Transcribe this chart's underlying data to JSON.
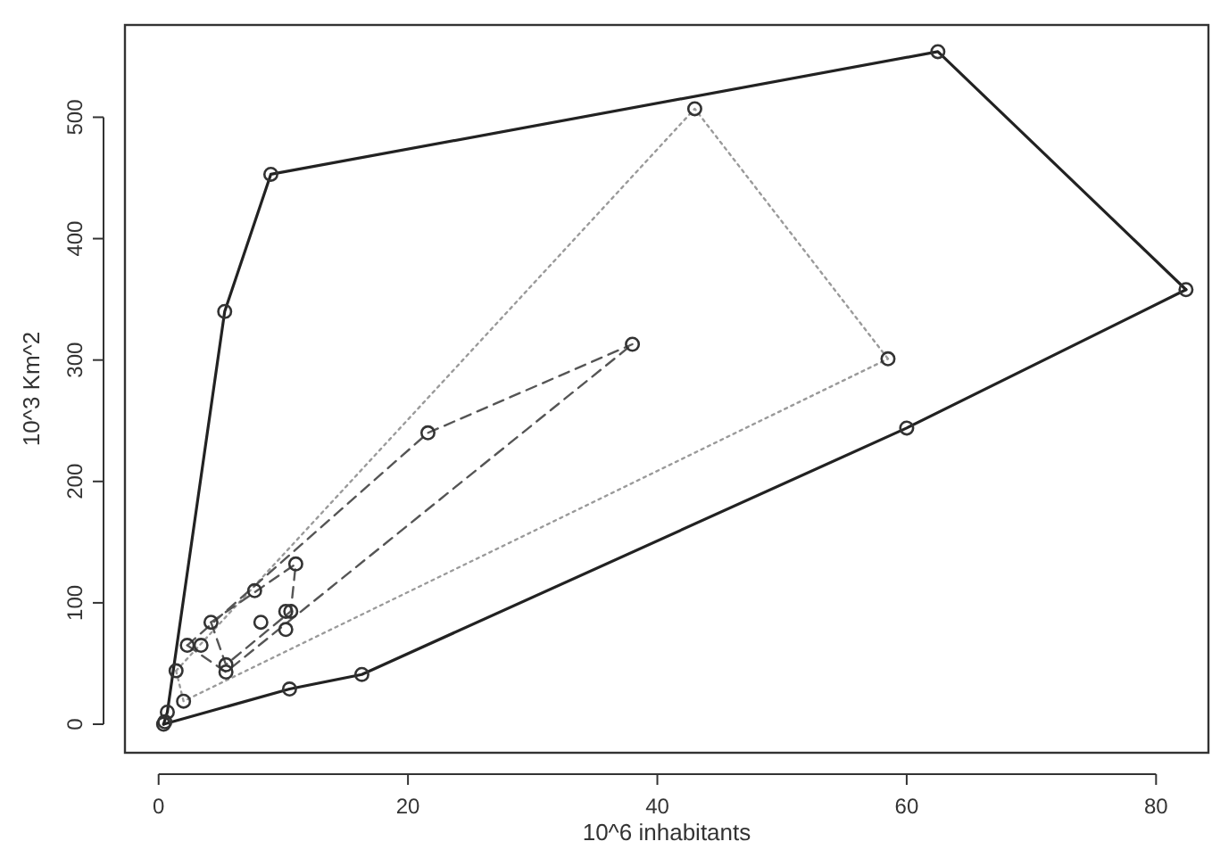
{
  "chart_data": {
    "type": "scatter",
    "xlabel": "10^6  inhabitants",
    "ylabel": "10^3 Km^2",
    "xlim": [
      -2.7,
      84.2
    ],
    "ylim": [
      -23.5,
      576
    ],
    "xticks": [
      0,
      20,
      40,
      60,
      80
    ],
    "yticks": [
      0,
      100,
      200,
      300,
      400,
      500
    ],
    "grid": false,
    "series": [
      {
        "type": "line",
        "color": "#222222",
        "line_style": "solid",
        "marker": "none",
        "x": [
          0.4,
          10.5,
          16.3,
          60,
          82.4
        ],
        "values": [
          0,
          29,
          41,
          244,
          358
        ]
      },
      {
        "type": "line",
        "color": "#222222",
        "line_style": "solid",
        "marker": "none",
        "x": [
          0.4,
          0.7,
          5.3,
          9.0,
          62.5,
          82.4
        ],
        "values": [
          0,
          10,
          340,
          453,
          554,
          358
        ]
      },
      {
        "type": "line",
        "color": "#9a9a9a",
        "line_style": "dotted",
        "marker": "none",
        "x": [
          1.4,
          2.0,
          58.5
        ],
        "values": [
          44,
          19,
          301
        ]
      },
      {
        "type": "line",
        "color": "#9a9a9a",
        "line_style": "dotted",
        "marker": "none",
        "x": [
          1.4,
          43,
          58.5
        ],
        "values": [
          44,
          507,
          301
        ]
      },
      {
        "type": "line",
        "color": "#555555",
        "line_style": "dashed",
        "marker": "none",
        "x": [
          2.3,
          5.4,
          38
        ],
        "values": [
          65,
          43,
          313
        ]
      },
      {
        "type": "line",
        "color": "#555555",
        "line_style": "dashed",
        "marker": "none",
        "x": [
          2.3,
          21.6,
          38
        ],
        "values": [
          65,
          240,
          313
        ]
      },
      {
        "type": "line",
        "color": "#555555",
        "line_style": "dashed",
        "marker": "none",
        "x": [
          4.2,
          5.4,
          10.6,
          11.0
        ],
        "values": [
          84,
          49,
          93,
          132
        ]
      },
      {
        "type": "line",
        "color": "#555555",
        "line_style": "dashed",
        "marker": "none",
        "x": [
          4.2,
          11.0
        ],
        "values": [
          84,
          132
        ]
      },
      {
        "color": "#333333",
        "marker": "circle",
        "x": [
          0.4,
          0.5,
          0.7,
          2.0,
          1.4,
          2.3,
          3.4,
          4.2,
          5.4,
          5.4,
          7.7,
          8.2,
          10.2,
          10.6,
          10.2,
          11.0,
          10.5,
          16.3,
          21.6,
          38,
          43,
          58.5,
          60,
          82.4,
          62.5,
          9.0,
          5.3
        ],
        "values": [
          0,
          2,
          10,
          19,
          44,
          65,
          65,
          84,
          49,
          43,
          110,
          84,
          93,
          93,
          78,
          132,
          29,
          41,
          240,
          313,
          507,
          301,
          244,
          358,
          554,
          453,
          340
        ]
      }
    ]
  }
}
